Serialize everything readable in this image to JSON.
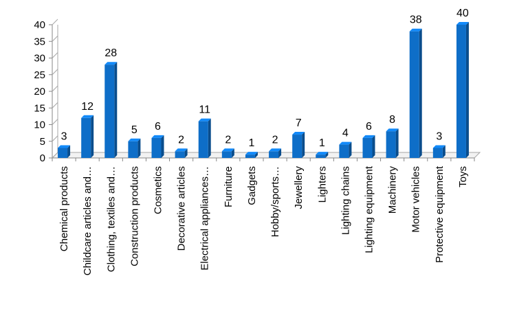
{
  "chart_data": {
    "type": "bar",
    "title": "",
    "xlabel": "",
    "ylabel": "",
    "ylim": [
      0,
      40
    ],
    "yticks": [
      0,
      5,
      10,
      15,
      20,
      25,
      30,
      35,
      40
    ],
    "grid": false,
    "legend": "none",
    "bar_color": "#0E6EC8",
    "categories": [
      "Chemical products",
      "Childcare articles and…",
      "Clothing, textiles and…",
      "Construction products",
      "Cosmetics",
      "Decorative articles",
      "Electrical appliances…",
      "Furniture",
      "Gadgets",
      "Hobby/sports…",
      "Jewellery",
      "Lighters",
      "Lighting chains",
      "Lighting equipment",
      "Machinery",
      "Motor vehicles",
      "Protective equipment",
      "Toys"
    ],
    "values": [
      3,
      12,
      28,
      5,
      6,
      2,
      11,
      2,
      1,
      2,
      7,
      1,
      4,
      6,
      8,
      38,
      3,
      40
    ]
  }
}
